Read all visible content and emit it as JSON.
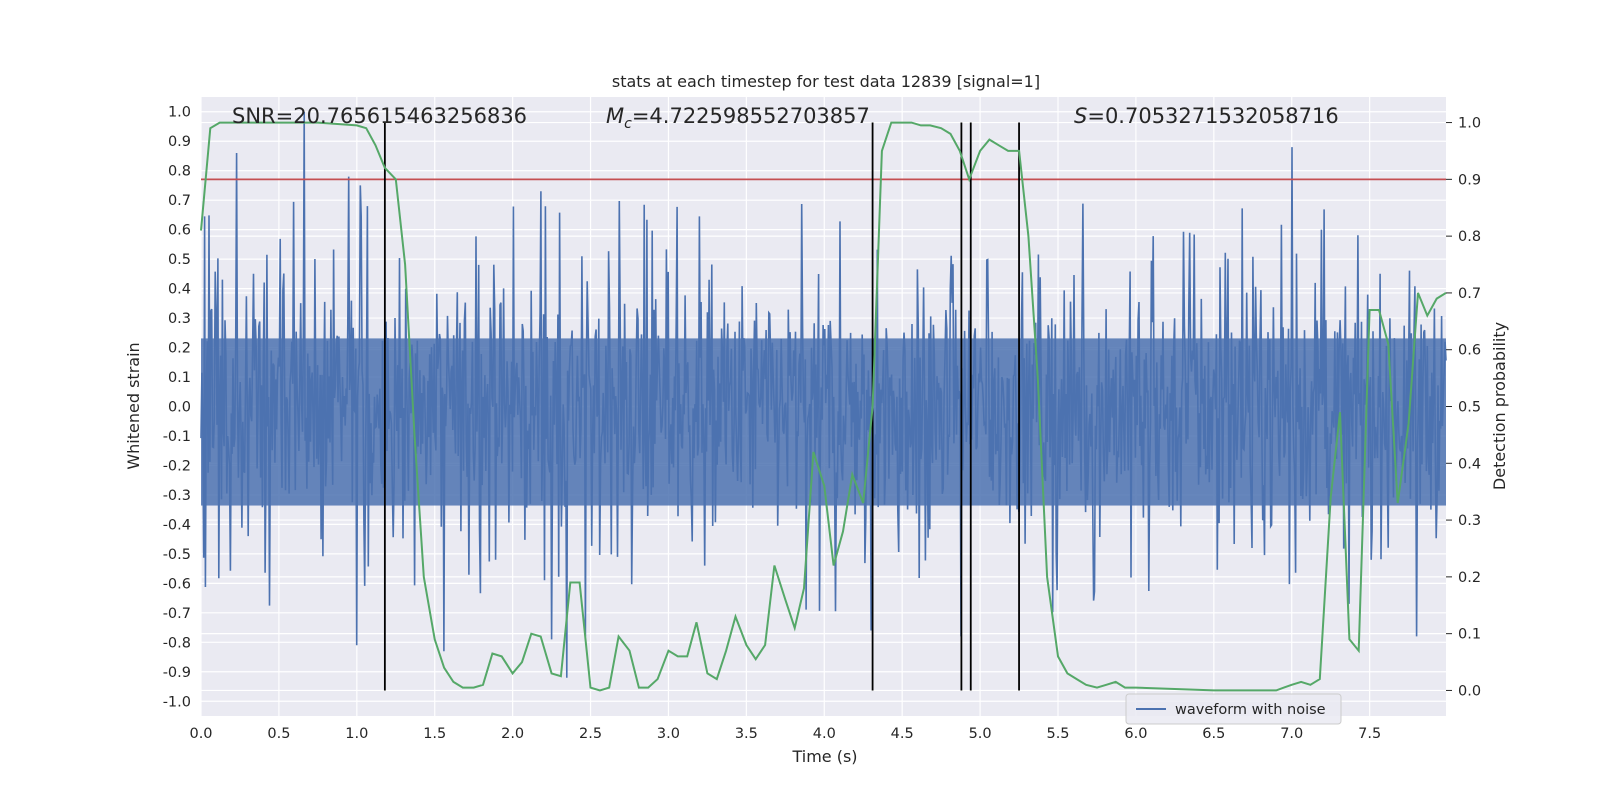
{
  "chart_data": {
    "type": "line",
    "title": "stats at each timestep for test data 12839 [signal=1]",
    "xlabel": "Time (s)",
    "ylabel_left": "Whitened strain",
    "ylabel_right": "Detection probability",
    "xlim": [
      0.0,
      7.99
    ],
    "ylim_left": [
      -1.05,
      1.05
    ],
    "ylim_right": [
      -0.045,
      1.045
    ],
    "xticks": [
      "0.0",
      "0.5",
      "1.0",
      "1.5",
      "2.0",
      "2.5",
      "3.0",
      "3.5",
      "4.0",
      "4.5",
      "5.0",
      "5.5",
      "6.0",
      "6.5",
      "7.0",
      "7.5"
    ],
    "yticks_left": [
      "-1.0",
      "-0.9",
      "-0.8",
      "-0.7",
      "-0.6",
      "-0.5",
      "-0.4",
      "-0.3",
      "-0.2",
      "-0.1",
      "0.0",
      "0.1",
      "0.2",
      "0.3",
      "0.4",
      "0.5",
      "0.6",
      "0.7",
      "0.8",
      "0.9",
      "1.0"
    ],
    "yticks_right": [
      "0.0",
      "0.1",
      "0.2",
      "0.3",
      "0.4",
      "0.5",
      "0.6",
      "0.7",
      "0.8",
      "0.9",
      "1.0"
    ],
    "grid": true,
    "legend": {
      "label": "waveform with noise",
      "placement": "lower-right"
    },
    "annotations": {
      "snr_label": "SNR=20.765615463256836",
      "mc_symbol": "M",
      "mc_sub": "c",
      "mc_value": "=4.722598552703857",
      "s_symbol": "S",
      "s_value": "=0.7053271532058716"
    },
    "colors": {
      "waveform": "#4c72b0",
      "probability": "#55a868",
      "threshold": "#c44e52",
      "markers": "#000000",
      "background": "#eaeaf2"
    },
    "threshold_right": 0.9,
    "vertical_lines_x": [
      1.18,
      4.31,
      4.88,
      4.94,
      5.25
    ],
    "vertical_lines_range_right": [
      0.0,
      1.0
    ],
    "waveform": {
      "name": "waveform with noise",
      "envelope_strain": 0.42,
      "sample_count": 1400,
      "peaks": [
        {
          "x": 0.23,
          "y": 0.86
        },
        {
          "x": 0.66,
          "y": 1.0
        },
        {
          "x": 1.0,
          "y": 0.88
        },
        {
          "x": 0.95,
          "y": 0.78
        },
        {
          "x": 1.02,
          "y": 0.75
        },
        {
          "x": 2.18,
          "y": 0.73
        },
        {
          "x": 7.0,
          "y": 0.88
        },
        {
          "x": 1.07,
          "y": 0.68
        },
        {
          "x": 1.0,
          "y": -0.81
        },
        {
          "x": 2.35,
          "y": -0.92
        },
        {
          "x": 2.25,
          "y": -0.79
        },
        {
          "x": 4.88,
          "y": -0.78
        },
        {
          "x": 4.3,
          "y": -0.76
        },
        {
          "x": 7.8,
          "y": -0.78
        },
        {
          "x": 2.47,
          "y": -0.78
        },
        {
          "x": 1.56,
          "y": -0.83
        }
      ]
    },
    "probability": {
      "x": [
        0.0,
        0.06,
        0.12,
        0.25,
        0.5,
        0.75,
        1.0,
        1.06,
        1.12,
        1.18,
        1.25,
        1.31,
        1.37,
        1.43,
        1.5,
        1.56,
        1.62,
        1.68,
        1.75,
        1.81,
        1.87,
        1.93,
        2.0,
        2.06,
        2.12,
        2.18,
        2.25,
        2.31,
        2.37,
        2.43,
        2.5,
        2.56,
        2.62,
        2.68,
        2.75,
        2.81,
        2.87,
        2.93,
        3.0,
        3.06,
        3.12,
        3.18,
        3.25,
        3.31,
        3.37,
        3.43,
        3.5,
        3.56,
        3.62,
        3.68,
        3.75,
        3.81,
        3.87,
        3.93,
        4.0,
        4.06,
        4.12,
        4.18,
        4.25,
        4.31,
        4.37,
        4.43,
        4.5,
        4.56,
        4.62,
        4.68,
        4.75,
        4.81,
        4.87,
        4.93,
        5.0,
        5.06,
        5.12,
        5.18,
        5.25,
        5.31,
        5.37,
        5.43,
        5.5,
        5.56,
        5.62,
        5.68,
        5.75,
        5.81,
        5.87,
        5.93,
        6.0,
        6.5,
        6.9,
        6.95,
        7.0,
        7.06,
        7.12,
        7.18,
        7.25,
        7.31,
        7.37,
        7.43,
        7.5,
        7.56,
        7.62,
        7.68,
        7.75,
        7.81,
        7.87,
        7.93,
        7.99
      ],
      "y": [
        0.81,
        0.99,
        1.0,
        1.0,
        1.0,
        1.0,
        0.995,
        0.99,
        0.96,
        0.92,
        0.9,
        0.75,
        0.45,
        0.2,
        0.09,
        0.04,
        0.015,
        0.005,
        0.005,
        0.01,
        0.065,
        0.06,
        0.03,
        0.05,
        0.1,
        0.095,
        0.03,
        0.025,
        0.19,
        0.19,
        0.005,
        0.0,
        0.005,
        0.095,
        0.07,
        0.005,
        0.005,
        0.02,
        0.07,
        0.06,
        0.06,
        0.12,
        0.03,
        0.02,
        0.07,
        0.13,
        0.08,
        0.055,
        0.08,
        0.22,
        0.16,
        0.11,
        0.18,
        0.42,
        0.36,
        0.22,
        0.28,
        0.38,
        0.33,
        0.5,
        0.95,
        1.0,
        1.0,
        1.0,
        0.995,
        0.995,
        0.99,
        0.98,
        0.95,
        0.9,
        0.95,
        0.97,
        0.96,
        0.95,
        0.95,
        0.8,
        0.55,
        0.2,
        0.06,
        0.03,
        0.02,
        0.01,
        0.005,
        0.01,
        0.015,
        0.005,
        0.005,
        0.0,
        0.0,
        0.005,
        0.01,
        0.015,
        0.01,
        0.02,
        0.34,
        0.49,
        0.09,
        0.07,
        0.67,
        0.67,
        0.61,
        0.33,
        0.47,
        0.7,
        0.66,
        0.69,
        0.7
      ]
    }
  }
}
